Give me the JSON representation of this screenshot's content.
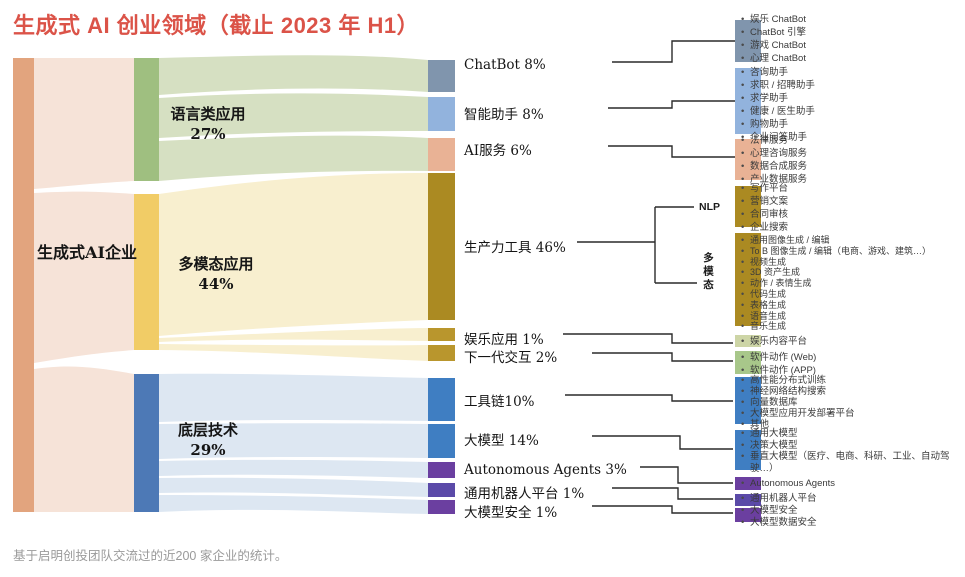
{
  "title": "生成式 AI 创业领域（截止 2023 年 H1）",
  "footnote": "基于启明创投团队交流过的近200 家企业的统计。",
  "colors": {
    "title_red": "#db5348",
    "footnote_gray": "#9a9a9a",
    "line": "#2a2a2a",
    "salmon_bar": "#e2a47e",
    "pink_flow": "#f6e3d8",
    "green_bar": "#9fbf80",
    "green_flow": "#d6e0c2",
    "yellow_bar": "#f1cc66",
    "yellow_flow": "#f8efcf",
    "blue_bar": "#4d79b6",
    "blue_flow": "#dde7f2",
    "gray_blue": "#8095ad",
    "light_blue": "#92b3dd",
    "salmon_block": "#e9b295",
    "gold_dark": "#ab8a22",
    "gold_bright": "#b9962d",
    "sage": "#cdd5a6",
    "green_soft": "#a8c78a",
    "blue_block": "#3f7ec2",
    "purple": "#6b3fa0",
    "purple_blue": "#5b4aa8"
  },
  "chart_data": {
    "type": "sankey",
    "title": "生成式 AI 创业领域（截止 2023 年 H1）",
    "root": {
      "label": "生成式AI企业",
      "value": 100
    },
    "level2": [
      {
        "label": "语言类应用",
        "value": 27,
        "pct_display": "27%"
      },
      {
        "label": "多模态应用",
        "value": 44,
        "pct_display": "44%"
      },
      {
        "label": "底层技术",
        "value": 29,
        "pct_display": "29%"
      }
    ],
    "links": [
      {
        "source": "生成式AI企业",
        "target": "语言类应用",
        "value": 27
      },
      {
        "source": "生成式AI企业",
        "target": "多模态应用",
        "value": 44
      },
      {
        "source": "生成式AI企业",
        "target": "底层技术",
        "value": 29
      }
    ],
    "level3": [
      {
        "label": "ChatBot",
        "value": 8,
        "display": "ChatBot 8%",
        "parent": "语言类应用"
      },
      {
        "label": "智能助手",
        "value": 8,
        "display": "智能助手 8%",
        "parent": "语言类应用"
      },
      {
        "label": "AI服务",
        "value": 6,
        "display": "AI服务 6%",
        "parent": "语言类应用"
      },
      {
        "label": "生产力工具",
        "value": 46,
        "display": "生产力工具 46%",
        "parent": "多模态应用"
      },
      {
        "label": "娱乐应用",
        "value": 1,
        "display": "娱乐应用 1%",
        "parent": "多模态应用"
      },
      {
        "label": "下一代交互",
        "value": 2,
        "display": "下一代交互 2%",
        "parent": "多模态应用"
      },
      {
        "label": "工具链",
        "value": 10,
        "display": "工具链10%",
        "parent": "底层技术"
      },
      {
        "label": "大模型",
        "value": 14,
        "display": "大模型 14%",
        "parent": "底层技术"
      },
      {
        "label": "Autonomous Agents",
        "value": 3,
        "display": "Autonomous Agents 3%",
        "parent": "底层技术"
      },
      {
        "label": "通用机器人平台",
        "value": 1,
        "display": "通用机器人平台 1%",
        "parent": "底层技术"
      },
      {
        "label": "大模型安全",
        "value": 1,
        "display": "大模型安全 1%",
        "parent": "底层技术"
      }
    ],
    "bracket": {
      "applies_to": "生产力工具",
      "top_label": "NLP",
      "bottom_label": "多模态"
    },
    "right_groups": [
      {
        "category": "ChatBot",
        "color": "gray_blue",
        "items": [
          "娱乐 ChatBot",
          "ChatBot 引擎",
          "游戏 ChatBot",
          "心理 ChatBot"
        ]
      },
      {
        "category": "智能助手",
        "color": "light_blue",
        "items": [
          "咨询助手",
          "求职 / 招聘助手",
          "求学助手",
          "健康 / 医生助手",
          "购物助手",
          "企业问答助手"
        ]
      },
      {
        "category": "AI服务",
        "color": "salmon_block",
        "items": [
          "法律服务",
          "心理咨询服务",
          "数据合成服务",
          "产业数据服务"
        ]
      },
      {
        "category": "生产力工具-NLP",
        "color": "gold_dark",
        "items": [
          "写作平台",
          "营销文案",
          "合同审核",
          "企业搜索"
        ]
      },
      {
        "category": "生产力工具-多模态",
        "color": "gold_dark",
        "items": [
          "通用图像生成 / 编辑",
          "To B 图像生成 / 编辑（电商、游戏、建筑…）",
          "视频生成",
          "3D 资产生成",
          "动作 / 表情生成",
          "代码生成",
          "表格生成",
          "语音生成",
          "音乐生成"
        ]
      },
      {
        "category": "娱乐应用",
        "color": "sage",
        "items": [
          "娱乐内容平台"
        ]
      },
      {
        "category": "下一代交互",
        "color": "green_soft",
        "items": [
          "软件动作 (Web)",
          "软件动作 (APP)"
        ]
      },
      {
        "category": "工具链",
        "color": "blue_block",
        "items": [
          "高性能分布式训练",
          "神经网络结构搜索",
          "向量数据库",
          "大模型应用开发部署平台",
          "其他"
        ]
      },
      {
        "category": "大模型",
        "color": "blue_block",
        "items": [
          "通用大模型",
          "决策大模型",
          "垂直大模型（医疗、电商、科研、工业、自动驾驶…）"
        ]
      },
      {
        "category": "Autonomous Agents",
        "color": "purple",
        "items": [
          "Autonomous Agents"
        ]
      },
      {
        "category": "通用机器人平台",
        "color": "purple_blue",
        "items": [
          "通用机器人平台"
        ]
      },
      {
        "category": "大模型安全",
        "color": "purple",
        "items": [
          "大模型安全",
          "大模型数据安全"
        ]
      }
    ]
  }
}
